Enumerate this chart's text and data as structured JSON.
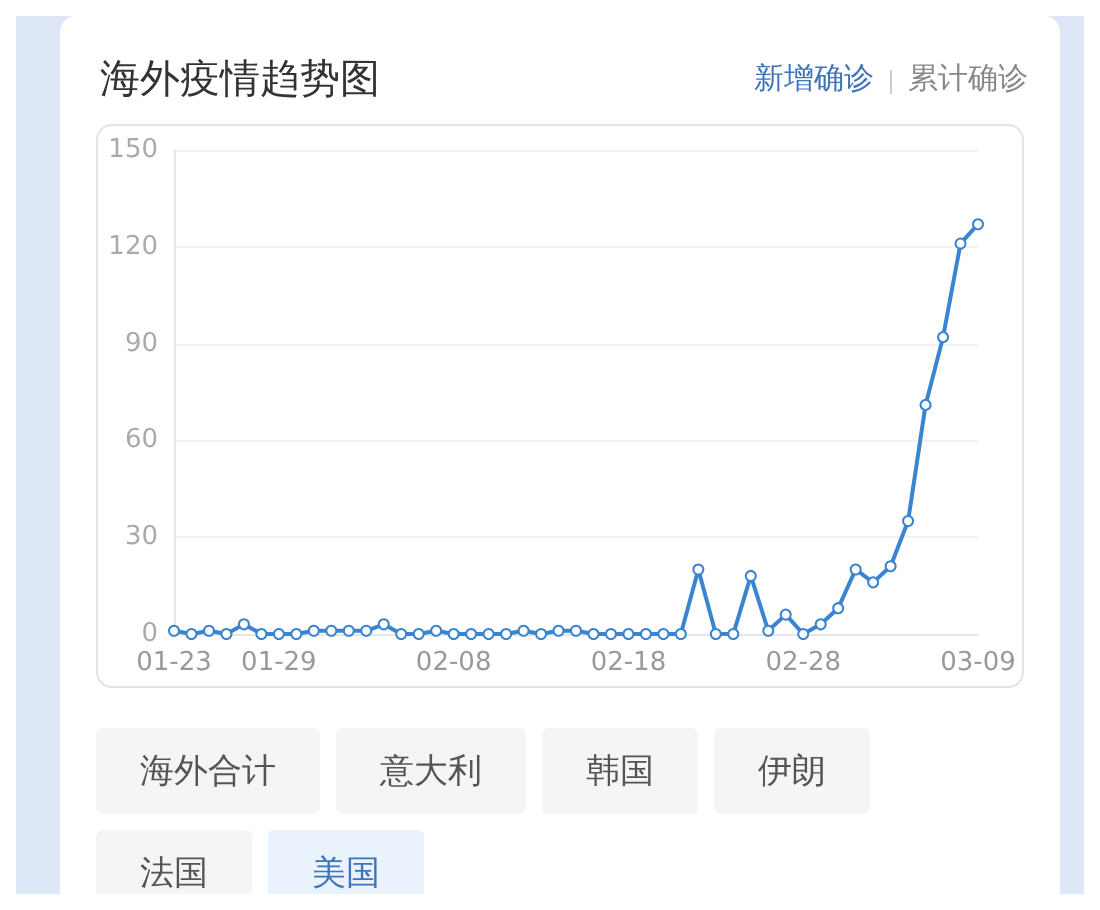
{
  "chart_data": {
    "type": "line",
    "title": "海外疫情趋势图",
    "annotations": [
      "新增确诊",
      "累计确诊",
      "海外合计",
      "意大利",
      "韩国",
      "伊朗",
      "法国",
      "美国"
    ],
    "categories": [
      "01-23",
      null,
      null,
      null,
      null,
      null,
      "01-29",
      null,
      null,
      null,
      null,
      null,
      null,
      null,
      null,
      null,
      "02-08",
      null,
      null,
      null,
      null,
      null,
      null,
      null,
      null,
      null,
      "02-18",
      null,
      null,
      null,
      null,
      null,
      null,
      null,
      null,
      null,
      "02-28",
      null,
      null,
      null,
      null,
      null,
      null,
      null,
      null,
      null,
      "03-09"
    ],
    "series": [
      {
        "color": "#3a85d0",
        "values": [
          1,
          0,
          1,
          0,
          3,
          0,
          0,
          0,
          1,
          1,
          1,
          1,
          3,
          0,
          0,
          1,
          0,
          0,
          0,
          0,
          1,
          0,
          1,
          1,
          0,
          0,
          0,
          0,
          0,
          0,
          20,
          0,
          0,
          18,
          1,
          6,
          0,
          3,
          8,
          20,
          16,
          21,
          35,
          71,
          92,
          121,
          127
        ]
      }
    ],
    "ylim": [
      0,
      150
    ],
    "yticks": [
      0,
      30,
      60,
      90,
      120,
      150
    ],
    "grid": "y",
    "marker": "circle",
    "line_style": "solid"
  }
}
